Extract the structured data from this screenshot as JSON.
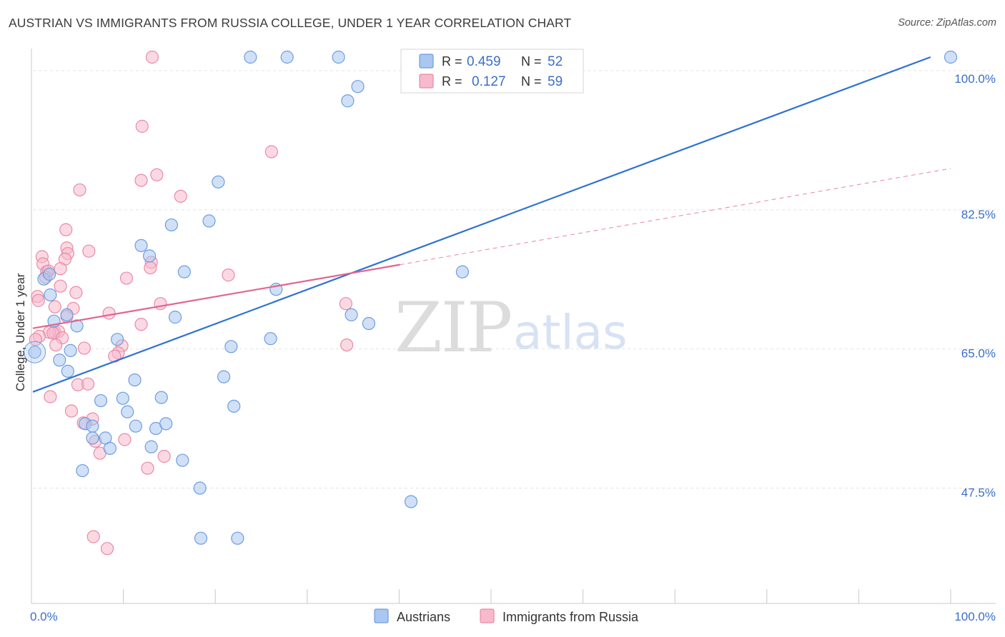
{
  "header": {
    "title": "AUSTRIAN VS IMMIGRANTS FROM RUSSIA COLLEGE, UNDER 1 YEAR CORRELATION CHART",
    "source": "Source: ZipAtlas.com"
  },
  "watermark": {
    "zip": "ZIP",
    "atlas": "atlas"
  },
  "legend_box": {
    "r_label": "R =",
    "n_label": "N =",
    "rows": [
      {
        "series": "Austrians",
        "r_value": "0.459",
        "n_value": "52",
        "fill": "#a9c7f0",
        "stroke": "#6d9ee0"
      },
      {
        "series": "Immigrants from Russia",
        "r_value": "0.127",
        "n_value": "59",
        "fill": "#f7b9cc",
        "stroke": "#e98aa7"
      }
    ]
  },
  "bottom_legend": {
    "items": [
      {
        "label": "Austrians",
        "fill": "#a9c7f0",
        "stroke": "#6d9ee0"
      },
      {
        "label": "Immigrants from Russia",
        "fill": "#f7b9cc",
        "stroke": "#e98aa7"
      }
    ]
  },
  "axes": {
    "y_title": "College, Under 1 year",
    "x_tick_labels": {
      "left": "0.0%",
      "right": "100.0%"
    },
    "y_tick_labels": [
      {
        "value": 100.0,
        "label": "100.0%"
      },
      {
        "value": 82.5,
        "label": "82.5%"
      },
      {
        "value": 65.0,
        "label": "65.0%"
      },
      {
        "value": 47.5,
        "label": "47.5%"
      }
    ]
  },
  "colors": {
    "blue_point_fill": "#a9c7f0",
    "blue_point_stroke": "#6d9ee0",
    "pink_point_fill": "#f7b9cc",
    "pink_point_stroke": "#e98aa7",
    "blue_line": "#2f72d2",
    "pink_line": "#e2658f",
    "grid": "#e3e3e3",
    "axis": "#c8c8c8"
  },
  "chart_data": {
    "type": "scatter",
    "title": "AUSTRIAN VS IMMIGRANTS FROM RUSSIA COLLEGE, UNDER 1 YEAR CORRELATION CHART",
    "xlabel": "",
    "ylabel": "College, Under 1 year",
    "xlim": [
      0,
      100
    ],
    "ylim": [
      33,
      101.7
    ],
    "grid": true,
    "legend_position": "top-center",
    "series": [
      {
        "name": "Austrians",
        "r": 0.459,
        "n": 52,
        "trend": {
          "x1": 0,
          "y1": 59.6,
          "x2": 97.8,
          "y2": 101.7
        },
        "points": [
          [
            23.7,
            101.7
          ],
          [
            27.7,
            101.7
          ],
          [
            33.3,
            101.7
          ],
          [
            100.0,
            101.7
          ],
          [
            34.3,
            96.2
          ],
          [
            20.2,
            86.0
          ],
          [
            19.2,
            81.1
          ],
          [
            15.1,
            80.6
          ],
          [
            11.8,
            78.0
          ],
          [
            12.7,
            76.7
          ],
          [
            16.5,
            74.7
          ],
          [
            46.8,
            74.7
          ],
          [
            1.2,
            73.8
          ],
          [
            1.8,
            74.4
          ],
          [
            26.5,
            72.5
          ],
          [
            1.9,
            71.8
          ],
          [
            3.7,
            69.3
          ],
          [
            15.5,
            69.0
          ],
          [
            34.7,
            69.3
          ],
          [
            2.3,
            68.5
          ],
          [
            36.6,
            68.2
          ],
          [
            4.8,
            67.9
          ],
          [
            9.2,
            66.2
          ],
          [
            25.9,
            66.3
          ],
          [
            0.2,
            64.6
          ],
          [
            21.6,
            65.3
          ],
          [
            4.1,
            64.8
          ],
          [
            2.9,
            63.6
          ],
          [
            3.8,
            62.2
          ],
          [
            11.1,
            61.1
          ],
          [
            20.8,
            61.5
          ],
          [
            7.4,
            58.5
          ],
          [
            9.8,
            58.8
          ],
          [
            14.0,
            58.9
          ],
          [
            10.3,
            57.1
          ],
          [
            21.9,
            57.8
          ],
          [
            5.7,
            55.6
          ],
          [
            6.5,
            55.3
          ],
          [
            11.2,
            55.3
          ],
          [
            13.4,
            55.0
          ],
          [
            14.5,
            55.6
          ],
          [
            6.5,
            53.8
          ],
          [
            7.9,
            53.8
          ],
          [
            8.4,
            52.5
          ],
          [
            12.9,
            52.7
          ],
          [
            16.3,
            51.0
          ],
          [
            5.4,
            49.7
          ],
          [
            18.2,
            47.5
          ],
          [
            41.2,
            45.8
          ],
          [
            18.3,
            41.2
          ],
          [
            22.3,
            41.2
          ],
          [
            35.4,
            98.0
          ]
        ]
      },
      {
        "name": "Immigrants from Russia",
        "r": 0.127,
        "n": 59,
        "trend": {
          "x1": 0,
          "y1": 67.6,
          "x2": 40.0,
          "y2": 75.6
        },
        "trend_extension": {
          "x1": 40.0,
          "y1": 75.6,
          "x2": 100.0,
          "y2": 87.7
        },
        "points": [
          [
            13.0,
            101.7
          ],
          [
            11.9,
            93.0
          ],
          [
            26.0,
            89.8
          ],
          [
            13.5,
            86.9
          ],
          [
            11.8,
            86.2
          ],
          [
            5.1,
            85.0
          ],
          [
            16.1,
            84.2
          ],
          [
            3.6,
            80.0
          ],
          [
            3.7,
            77.7
          ],
          [
            6.1,
            77.3
          ],
          [
            3.8,
            77.0
          ],
          [
            1.0,
            76.6
          ],
          [
            3.5,
            76.3
          ],
          [
            1.1,
            75.7
          ],
          [
            12.9,
            75.9
          ],
          [
            12.8,
            75.2
          ],
          [
            1.5,
            74.7
          ],
          [
            1.7,
            74.8
          ],
          [
            3.0,
            75.1
          ],
          [
            21.3,
            74.3
          ],
          [
            1.4,
            74.0
          ],
          [
            10.2,
            73.9
          ],
          [
            3.0,
            72.9
          ],
          [
            4.7,
            72.1
          ],
          [
            0.5,
            71.6
          ],
          [
            0.6,
            71.1
          ],
          [
            13.9,
            70.7
          ],
          [
            34.1,
            70.7
          ],
          [
            2.4,
            70.3
          ],
          [
            4.4,
            70.1
          ],
          [
            8.3,
            69.5
          ],
          [
            3.7,
            69.1
          ],
          [
            11.8,
            68.1
          ],
          [
            2.4,
            67.1
          ],
          [
            2.8,
            67.2
          ],
          [
            1.8,
            67.1
          ],
          [
            2.2,
            67.0
          ],
          [
            0.7,
            66.6
          ],
          [
            3.2,
            66.4
          ],
          [
            0.3,
            66.2
          ],
          [
            2.5,
            65.5
          ],
          [
            9.7,
            65.4
          ],
          [
            34.2,
            65.5
          ],
          [
            5.6,
            65.1
          ],
          [
            9.3,
            64.5
          ],
          [
            8.9,
            64.1
          ],
          [
            4.9,
            60.5
          ],
          [
            6.0,
            60.6
          ],
          [
            1.9,
            59.0
          ],
          [
            4.2,
            57.2
          ],
          [
            6.5,
            56.2
          ],
          [
            5.5,
            55.7
          ],
          [
            6.8,
            53.4
          ],
          [
            10.0,
            53.6
          ],
          [
            7.3,
            51.9
          ],
          [
            14.3,
            51.5
          ],
          [
            12.5,
            50.0
          ],
          [
            6.6,
            41.4
          ],
          [
            8.1,
            39.9
          ]
        ]
      }
    ]
  }
}
